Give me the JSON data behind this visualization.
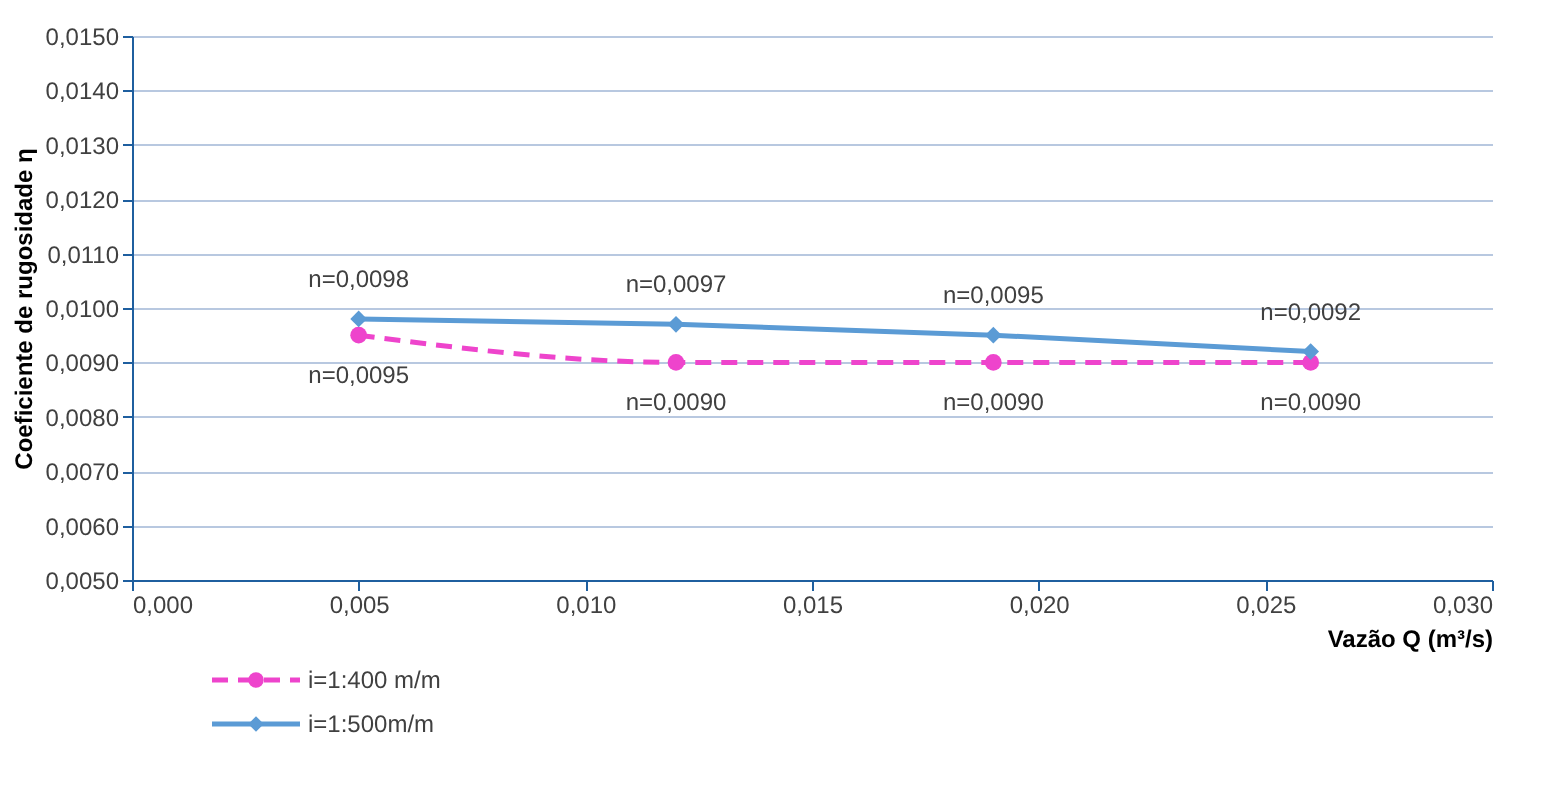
{
  "chart_data": {
    "type": "line",
    "xlabel": "Vazão Q (m³/s)",
    "ylabel": "Coeficiente de rugosidade η",
    "x": [
      0.005,
      0.012,
      0.019,
      0.026
    ],
    "series": [
      {
        "name": "i=1:400 m/m",
        "color": "#ee44cc",
        "values": [
          0.0095,
          0.009,
          0.009,
          0.009
        ],
        "marker": "circle",
        "line_style": "dashed",
        "value_labels": [
          "n=0,0095",
          "n=0,0090",
          "n=0,0090",
          "n=0,0090"
        ]
      },
      {
        "name": "i=1:500m/m",
        "color": "#5b9bd5",
        "values": [
          0.0098,
          0.0097,
          0.0095,
          0.0092
        ],
        "marker": "diamond",
        "line_style": "solid",
        "value_labels": [
          "n=0,0098",
          "n=0,0097",
          "n=0,0095",
          "n=0,0092"
        ]
      }
    ],
    "xlim": [
      0,
      0.03
    ],
    "xticks": [
      {
        "value": 0,
        "label": "0,000"
      },
      {
        "value": 0.005,
        "label": "0,005"
      },
      {
        "value": 0.01,
        "label": "0,010"
      },
      {
        "value": 0.015,
        "label": "0,015"
      },
      {
        "value": 0.02,
        "label": "0,020"
      },
      {
        "value": 0.025,
        "label": "0,025"
      },
      {
        "value": 0.03,
        "label": "0,030"
      }
    ],
    "ylim": [
      0.005,
      0.015
    ],
    "yticks": [
      {
        "value": 0.005,
        "label": "0,0050"
      },
      {
        "value": 0.006,
        "label": "0,0060"
      },
      {
        "value": 0.007,
        "label": "0,0070"
      },
      {
        "value": 0.008,
        "label": "0,0080"
      },
      {
        "value": 0.009,
        "label": "0,0090"
      },
      {
        "value": 0.01,
        "label": "0,0100"
      },
      {
        "value": 0.011,
        "label": "0,0110"
      },
      {
        "value": 0.012,
        "label": "0,0120"
      },
      {
        "value": 0.013,
        "label": "0,0130"
      },
      {
        "value": 0.014,
        "label": "0,0140"
      },
      {
        "value": 0.015,
        "label": "0,0150"
      }
    ],
    "grid": "y",
    "legend": "bottom left"
  }
}
